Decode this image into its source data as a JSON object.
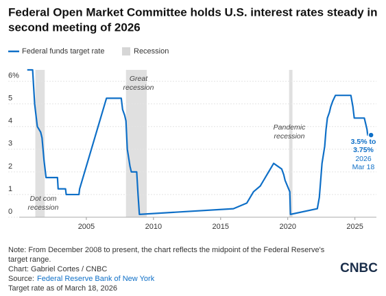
{
  "chart_data": {
    "type": "line",
    "title": [
      "Federal Open Market Committee holds U.S. interest rates steady in",
      "second meeting of 2026"
    ],
    "x": [
      2000.6,
      2001.0,
      2001.05,
      2001.15,
      2001.35,
      2001.6,
      2001.7,
      2001.85,
      2001.95,
      2002.0,
      2002.85,
      2002.9,
      2003.45,
      2003.5,
      2004.45,
      2004.5,
      2006.5,
      2007.6,
      2007.7,
      2007.85,
      2007.95,
      2008.05,
      2008.25,
      2008.35,
      2008.75,
      2008.8,
      2008.85,
      2008.95,
      2015.95,
      2016.95,
      2017.2,
      2017.45,
      2017.95,
      2018.2,
      2018.45,
      2018.7,
      2018.95,
      2019.55,
      2019.7,
      2019.8,
      2020.15,
      2020.2,
      2022.2,
      2022.35,
      2022.45,
      2022.55,
      2022.75,
      2022.85,
      2022.95,
      2023.1,
      2023.2,
      2023.35,
      2023.55,
      2024.7,
      2024.85,
      2024.9,
      2024.95,
      2025.7,
      2025.8,
      2025.9,
      2025.95,
      2026.2
    ],
    "series": [
      {
        "name": "Federal funds target rate",
        "color": "#0e6fc7",
        "values": [
          6.5,
          6.5,
          6.0,
          5.0,
          4.0,
          3.75,
          3.5,
          2.5,
          2.0,
          1.75,
          1.75,
          1.25,
          1.25,
          1.0,
          1.0,
          1.25,
          5.25,
          5.25,
          4.75,
          4.5,
          4.25,
          3.0,
          2.25,
          2.0,
          2.0,
          1.5,
          1.0,
          0.125,
          0.375,
          0.625,
          0.875,
          1.125,
          1.375,
          1.625,
          1.875,
          2.125,
          2.375,
          2.125,
          1.875,
          1.625,
          1.125,
          0.125,
          0.375,
          0.875,
          1.625,
          2.375,
          3.125,
          3.875,
          4.375,
          4.625,
          4.875,
          5.125,
          5.375,
          5.375,
          4.875,
          4.625,
          4.375,
          4.375,
          4.125,
          3.875,
          3.625,
          3.625
        ]
      }
    ],
    "recession_legend": "Recession",
    "recession_color": "#e0e0e0",
    "recessions": [
      [
        2001.2,
        2001.9
      ],
      [
        2007.95,
        2009.5
      ],
      [
        2020.1,
        2020.35
      ]
    ],
    "annotations": [
      {
        "lines": [
          "Dot com",
          "recession"
        ]
      },
      {
        "lines": [
          "Great",
          "recession"
        ]
      },
      {
        "lines": [
          "Pandemic",
          "recession"
        ]
      }
    ],
    "end_label": {
      "rate": [
        "3.5% to",
        "3.75%"
      ],
      "date": [
        "2026",
        "Mar 18"
      ]
    },
    "xlim": [
      2000,
      2026.6
    ],
    "xticks": [
      2005,
      2010,
      2015,
      2020,
      2025
    ],
    "ylim": [
      0,
      6.5
    ],
    "yticks": [
      0,
      1,
      2,
      3,
      4,
      5,
      {
        "value": 6,
        "label": "6%"
      }
    ],
    "grid": true
  },
  "footer": {
    "note": [
      "Note: From December 2008 to present, the chart reflects the midpoint of the Federal Reserve's",
      "target range."
    ],
    "credit": "Chart: Gabriel Cortes / CNBC",
    "source_label": "Source:",
    "source": "Federal Reserve Bank of New York",
    "date_note": "Target rate as of March 18, 2026",
    "logo": "CNBC"
  }
}
